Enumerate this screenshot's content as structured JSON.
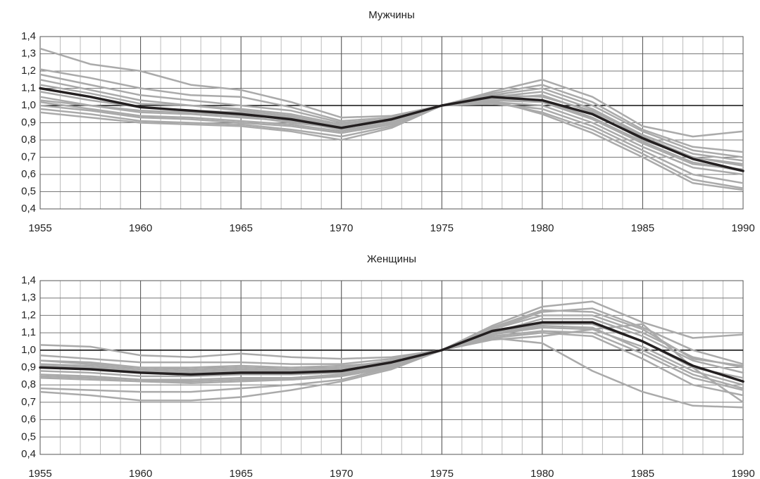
{
  "chart_data": [
    {
      "type": "line",
      "title": "Мужчины",
      "x": [
        1955,
        1957.5,
        1960,
        1962.5,
        1965,
        1967.5,
        1970,
        1972.5,
        1975,
        1977.5,
        1980,
        1982.5,
        1985,
        1987.5,
        1990
      ],
      "xlim": [
        1955,
        1990
      ],
      "xticks": [
        1955,
        1960,
        1965,
        1970,
        1975,
        1980,
        1985,
        1990
      ],
      "x_minor_step": 1,
      "ylim": [
        0.4,
        1.4
      ],
      "yticks": [
        {
          "value": 0.4,
          "label": "0,4"
        },
        {
          "value": 0.5,
          "label": "0,5"
        },
        {
          "value": 0.6,
          "label": "0,6"
        },
        {
          "value": 0.7,
          "label": "0,7"
        },
        {
          "value": 0.8,
          "label": "0,8"
        },
        {
          "value": 0.9,
          "label": "0,9"
        },
        {
          "value": 1.0,
          "label": "1,0"
        },
        {
          "value": 1.1,
          "label": "1,1"
        },
        {
          "value": 1.2,
          "label": "1,2"
        },
        {
          "value": 1.3,
          "label": "1,3"
        },
        {
          "value": 1.4,
          "label": "1,4"
        }
      ],
      "grid": true,
      "reference_line": 1.0,
      "series": [
        {
          "color": "#aaaaaa",
          "values": [
            1.33,
            1.24,
            1.2,
            1.12,
            1.09,
            1.02,
            0.93,
            0.94,
            1.0,
            1.08,
            1.15,
            1.05,
            0.88,
            0.82,
            0.85
          ]
        },
        {
          "color": "#aaaaaa",
          "values": [
            1.21,
            1.16,
            1.1,
            1.06,
            1.05,
            0.99,
            0.91,
            0.93,
            1.0,
            1.07,
            1.12,
            1.02,
            0.86,
            0.76,
            0.73
          ]
        },
        {
          "color": "#aaaaaa",
          "values": [
            1.18,
            1.12,
            1.06,
            1.03,
            1.0,
            0.97,
            0.9,
            0.92,
            1.0,
            1.06,
            1.1,
            1.0,
            0.85,
            0.74,
            0.7
          ]
        },
        {
          "color": "#aaaaaa",
          "values": [
            1.15,
            1.09,
            1.03,
            1.0,
            0.98,
            0.95,
            0.89,
            0.92,
            1.0,
            1.05,
            1.08,
            0.98,
            0.83,
            0.72,
            0.68
          ]
        },
        {
          "color": "#aaaaaa",
          "values": [
            1.08,
            1.03,
            0.99,
            0.97,
            0.96,
            0.93,
            0.88,
            0.91,
            1.0,
            1.04,
            1.06,
            0.96,
            0.8,
            0.7,
            0.66
          ]
        },
        {
          "color": "#aaaaaa",
          "values": [
            1.05,
            1.0,
            0.96,
            0.95,
            0.93,
            0.91,
            0.86,
            0.9,
            1.0,
            1.03,
            1.02,
            0.92,
            0.78,
            0.66,
            0.63
          ]
        },
        {
          "color": "#aaaaaa",
          "values": [
            1.02,
            0.98,
            0.94,
            0.93,
            0.91,
            0.89,
            0.85,
            0.9,
            1.0,
            1.02,
            1.0,
            0.9,
            0.76,
            0.64,
            0.6
          ]
        },
        {
          "color": "#aaaaaa",
          "values": [
            1.0,
            0.97,
            0.93,
            0.92,
            0.9,
            0.88,
            0.84,
            0.89,
            1.0,
            1.01,
            0.98,
            0.88,
            0.74,
            0.6,
            0.55
          ]
        },
        {
          "color": "#aaaaaa",
          "values": [
            0.98,
            0.95,
            0.91,
            0.9,
            0.89,
            0.86,
            0.82,
            0.88,
            1.0,
            1.02,
            0.96,
            0.86,
            0.72,
            0.57,
            0.52
          ]
        },
        {
          "color": "#aaaaaa",
          "values": [
            0.96,
            0.93,
            0.9,
            0.89,
            0.88,
            0.85,
            0.8,
            0.87,
            1.0,
            1.03,
            0.95,
            0.84,
            0.7,
            0.55,
            0.51
          ]
        },
        {
          "color": "#aaaaaa",
          "values": [
            1.12,
            1.07,
            1.01,
            1.0,
            0.97,
            0.94,
            0.88,
            0.91,
            1.0,
            1.06,
            1.05,
            0.97,
            0.82,
            0.7,
            0.65
          ]
        },
        {
          "color": "#aaaaaa",
          "values": [
            1.03,
            1.0,
            0.97,
            0.96,
            0.94,
            0.9,
            0.87,
            0.91,
            1.0,
            1.04,
            1.03,
            0.93,
            0.79,
            0.67,
            0.62
          ]
        },
        {
          "color": "#231f20",
          "values": [
            1.1,
            1.05,
            0.99,
            0.97,
            0.95,
            0.92,
            0.87,
            0.92,
            1.0,
            1.05,
            1.03,
            0.95,
            0.81,
            0.69,
            0.62
          ]
        }
      ]
    },
    {
      "type": "line",
      "title": "Женщины",
      "x": [
        1955,
        1957.5,
        1960,
        1962.5,
        1965,
        1967.5,
        1970,
        1972.5,
        1975,
        1977.5,
        1980,
        1982.5,
        1985,
        1987.5,
        1990
      ],
      "xlim": [
        1955,
        1990
      ],
      "xticks": [
        1955,
        1960,
        1965,
        1970,
        1975,
        1980,
        1985,
        1990
      ],
      "x_minor_step": 1,
      "ylim": [
        0.4,
        1.4
      ],
      "yticks": [
        {
          "value": 0.4,
          "label": "0,4"
        },
        {
          "value": 0.5,
          "label": "0,5"
        },
        {
          "value": 0.6,
          "label": "0,6"
        },
        {
          "value": 0.7,
          "label": "0,7"
        },
        {
          "value": 0.8,
          "label": "0,8"
        },
        {
          "value": 0.9,
          "label": "0,9"
        },
        {
          "value": 1.0,
          "label": "1,0"
        },
        {
          "value": 1.1,
          "label": "1,1"
        },
        {
          "value": 1.2,
          "label": "1,2"
        },
        {
          "value": 1.3,
          "label": "1,3"
        },
        {
          "value": 1.4,
          "label": "1,4"
        }
      ],
      "grid": true,
      "reference_line": 1.0,
      "series": [
        {
          "color": "#aaaaaa",
          "values": [
            1.03,
            1.02,
            0.97,
            0.96,
            0.98,
            0.96,
            0.95,
            0.96,
            1.0,
            1.14,
            1.25,
            1.28,
            1.16,
            1.07,
            1.09
          ]
        },
        {
          "color": "#aaaaaa",
          "values": [
            0.97,
            0.95,
            0.93,
            0.93,
            0.93,
            0.92,
            0.92,
            0.95,
            1.0,
            1.12,
            1.22,
            1.24,
            1.13,
            1.0,
            0.92
          ]
        },
        {
          "color": "#aaaaaa",
          "values": [
            0.94,
            0.92,
            0.9,
            0.89,
            0.9,
            0.89,
            0.9,
            0.94,
            1.0,
            1.12,
            1.2,
            1.2,
            1.1,
            0.96,
            0.9
          ]
        },
        {
          "color": "#aaaaaa",
          "values": [
            0.91,
            0.9,
            0.88,
            0.87,
            0.88,
            0.88,
            0.89,
            0.93,
            1.0,
            1.1,
            1.18,
            1.18,
            1.08,
            0.94,
            0.87
          ]
        },
        {
          "color": "#aaaaaa",
          "values": [
            0.88,
            0.87,
            0.85,
            0.85,
            0.86,
            0.86,
            0.87,
            0.92,
            1.0,
            1.1,
            1.15,
            1.15,
            1.05,
            0.9,
            0.84
          ]
        },
        {
          "color": "#aaaaaa",
          "values": [
            0.86,
            0.85,
            0.83,
            0.83,
            0.84,
            0.84,
            0.86,
            0.91,
            1.0,
            1.09,
            1.13,
            1.12,
            1.02,
            0.88,
            0.8
          ]
        },
        {
          "color": "#aaaaaa",
          "values": [
            0.84,
            0.83,
            0.82,
            0.81,
            0.82,
            0.83,
            0.85,
            0.9,
            1.0,
            1.08,
            1.11,
            1.1,
            0.98,
            0.84,
            0.77
          ]
        },
        {
          "color": "#aaaaaa",
          "values": [
            0.78,
            0.77,
            0.76,
            0.76,
            0.78,
            0.8,
            0.83,
            0.9,
            1.0,
            1.07,
            1.1,
            1.08,
            0.95,
            0.8,
            0.74
          ]
        },
        {
          "color": "#aaaaaa",
          "values": [
            0.76,
            0.74,
            0.71,
            0.71,
            0.73,
            0.77,
            0.82,
            0.89,
            1.0,
            1.06,
            1.08,
            1.12,
            1.15,
            0.9,
            0.7
          ]
        },
        {
          "color": "#aaaaaa",
          "values": [
            0.94,
            0.93,
            0.9,
            0.9,
            0.91,
            0.9,
            0.91,
            0.93,
            1.0,
            1.07,
            1.04,
            0.88,
            0.76,
            0.68,
            0.67
          ]
        },
        {
          "color": "#aaaaaa",
          "values": [
            0.92,
            0.91,
            0.89,
            0.88,
            0.89,
            0.88,
            0.89,
            0.93,
            1.0,
            1.13,
            1.23,
            1.22,
            1.12,
            0.95,
            0.91
          ]
        },
        {
          "color": "#aaaaaa",
          "values": [
            0.85,
            0.84,
            0.82,
            0.82,
            0.83,
            0.83,
            0.85,
            0.91,
            1.0,
            1.09,
            1.14,
            1.13,
            1.0,
            0.86,
            0.78
          ]
        },
        {
          "color": "#231f20",
          "values": [
            0.9,
            0.89,
            0.87,
            0.86,
            0.87,
            0.87,
            0.88,
            0.93,
            1.0,
            1.11,
            1.16,
            1.16,
            1.05,
            0.91,
            0.82
          ]
        }
      ]
    }
  ]
}
